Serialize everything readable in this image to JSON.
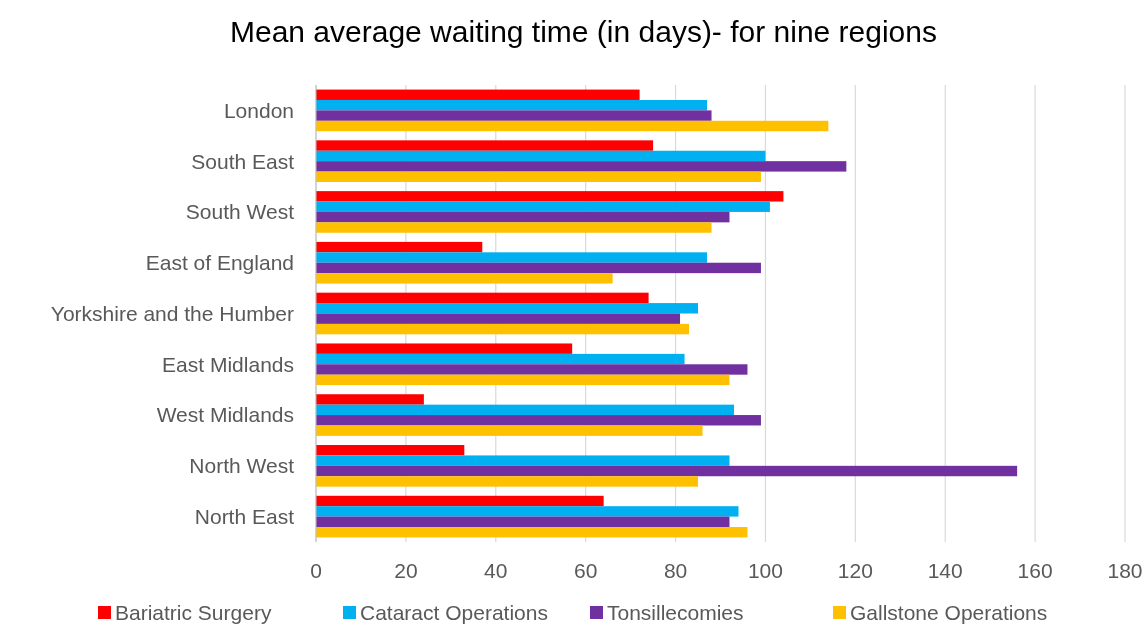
{
  "chart_data": {
    "type": "bar",
    "orientation": "horizontal",
    "title": "Mean average waiting time (in days)- for nine regions",
    "categories": [
      "London",
      "South East",
      "South West",
      "East of England",
      "Yorkshire and the Humber",
      "East Midlands",
      "West Midlands",
      "North West",
      "North East"
    ],
    "series": [
      {
        "name": "Bariatric Surgery",
        "color": "#ff0000",
        "values": [
          72,
          75,
          104,
          37,
          74,
          57,
          24,
          33,
          64
        ]
      },
      {
        "name": "Cataract Operations",
        "color": "#00b0f0",
        "values": [
          87,
          100,
          101,
          87,
          85,
          82,
          93,
          92,
          94
        ]
      },
      {
        "name": "Tonsillecomies",
        "color": "#7030a0",
        "values": [
          88,
          118,
          92,
          99,
          81,
          96,
          99,
          156,
          92
        ]
      },
      {
        "name": "Gallstone Operations",
        "color": "#ffc000",
        "values": [
          114,
          99,
          88,
          66,
          83,
          92,
          86,
          85,
          96
        ]
      }
    ],
    "xlim": [
      0,
      180
    ],
    "xticks": [
      0,
      20,
      40,
      60,
      80,
      100,
      120,
      140,
      160,
      180
    ],
    "grid": "x",
    "legend": "bottom"
  }
}
